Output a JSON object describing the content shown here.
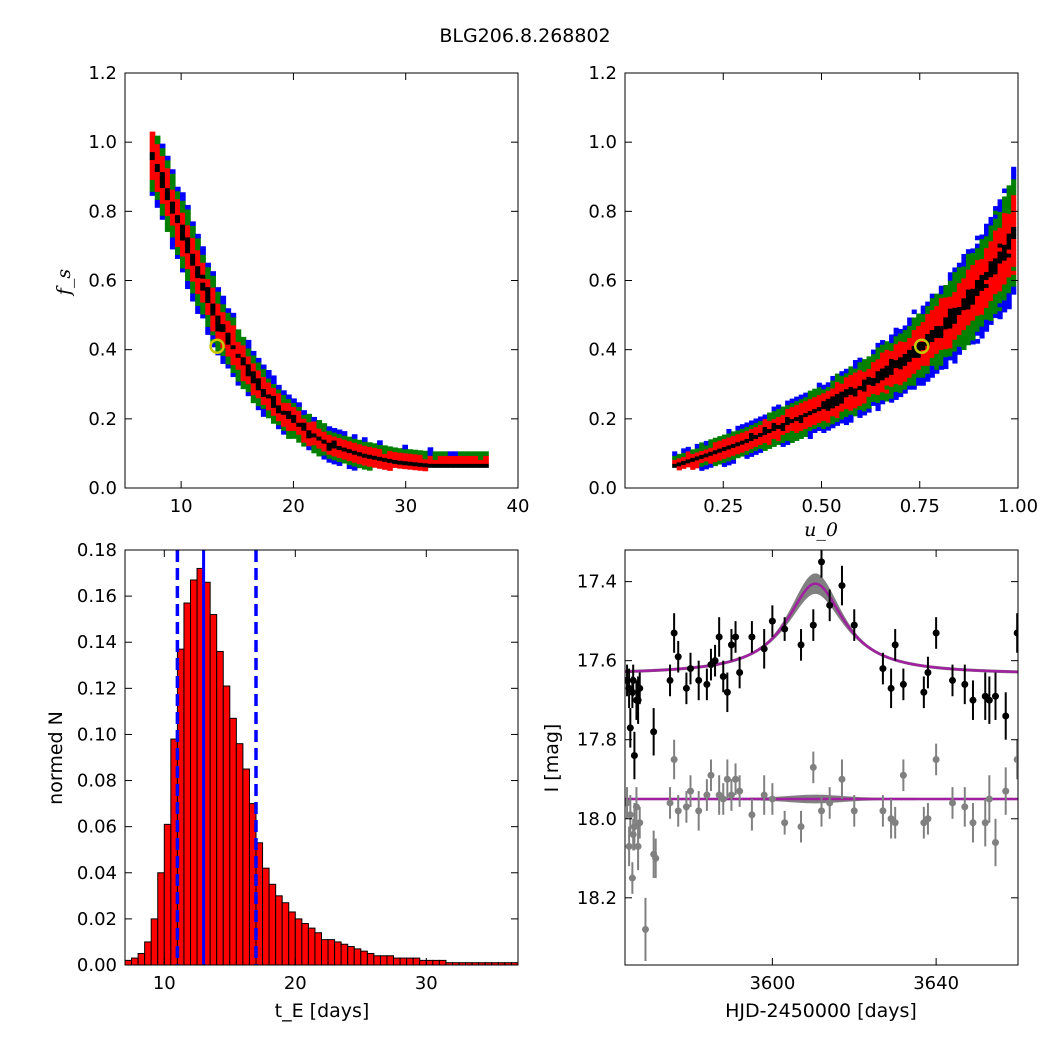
{
  "title": "BLG206.8.268802",
  "colors": {
    "level_outer": "#0000ff",
    "level_mid": "#008000",
    "level_inner": "#ff0000",
    "level_core": "#000000",
    "best_fit_marker": "#c8c800",
    "hist_bar": "#ff0000",
    "quantile_line": "#0000ff",
    "model_line": "#a020a0",
    "model_band": "#808080",
    "residual_points": "#808080",
    "data_points": "#000000"
  },
  "chart_data": [
    {
      "id": "tE_fs",
      "type": "heatmap",
      "xlabel": "",
      "ylabel": "f_s",
      "xlim": [
        5,
        40
      ],
      "ylim": [
        0,
        1.2
      ],
      "xticks": [
        "10",
        "20",
        "30",
        "40"
      ],
      "yticks": [
        "0.0",
        "0.2",
        "0.4",
        "0.6",
        "0.8",
        "1.0",
        "1.2"
      ],
      "levels": [
        "outer",
        "mid",
        "inner",
        "core"
      ],
      "ridge": {
        "x": [
          7.2,
          8.5,
          10.0,
          11.5,
          13.0,
          15.0,
          17.0,
          19.0,
          21.0,
          23.0,
          26.0,
          29.0,
          32.0,
          35.0,
          37.0
        ],
        "y": [
          0.95,
          0.85,
          0.72,
          0.6,
          0.48,
          0.37,
          0.28,
          0.21,
          0.16,
          0.12,
          0.09,
          0.07,
          0.06,
          0.06,
          0.06
        ]
      },
      "best_fit": {
        "x": 13.2,
        "y": 0.41
      }
    },
    {
      "id": "u0_fs",
      "type": "heatmap",
      "xlabel": "u_0",
      "ylabel": "",
      "xlim": [
        0.0,
        1.0
      ],
      "ylim": [
        0,
        1.2
      ],
      "xticks": [
        "0.25",
        "0.50",
        "0.75",
        "1.00"
      ],
      "yticks": [
        "0.0",
        "0.2",
        "0.4",
        "0.6",
        "0.8",
        "1.0",
        "1.2"
      ],
      "levels": [
        "outer",
        "mid",
        "inner",
        "core"
      ],
      "ridge": {
        "x": [
          0.12,
          0.2,
          0.3,
          0.4,
          0.5,
          0.6,
          0.7,
          0.75,
          0.8,
          0.9,
          0.97,
          1.0
        ],
        "y": [
          0.06,
          0.09,
          0.13,
          0.18,
          0.23,
          0.29,
          0.36,
          0.41,
          0.46,
          0.58,
          0.7,
          0.78
        ]
      },
      "best_fit": {
        "x": 0.755,
        "y": 0.41
      }
    },
    {
      "id": "tE_hist",
      "type": "bar",
      "xlabel": "t_E  [days]",
      "ylabel": "normed N",
      "xlim": [
        7,
        37
      ],
      "ylim": [
        0,
        0.18
      ],
      "xticks": [
        "10",
        "20",
        "30"
      ],
      "yticks": [
        "0.00",
        "0.02",
        "0.04",
        "0.06",
        "0.08",
        "0.10",
        "0.12",
        "0.14",
        "0.16",
        "0.18"
      ],
      "bin_width": 0.5,
      "bin_starts": [
        7.0,
        7.5,
        8.0,
        8.5,
        9.0,
        9.5,
        10.0,
        10.5,
        11.0,
        11.5,
        12.0,
        12.5,
        13.0,
        13.5,
        14.0,
        14.5,
        15.0,
        15.5,
        16.0,
        16.5,
        17.0,
        17.5,
        18.0,
        18.5,
        19.0,
        19.5,
        20.0,
        20.5,
        21.0,
        21.5,
        22.0,
        22.5,
        23.0,
        23.5,
        24.0,
        24.5,
        25.0,
        25.5,
        26.0,
        26.5,
        27.0,
        27.5,
        28.0,
        28.5,
        29.0,
        29.5,
        30.0,
        30.5,
        31.0,
        31.5,
        32.0,
        32.5,
        33.0,
        33.5,
        34.0,
        34.5,
        35.0,
        35.5,
        36.0,
        36.5
      ],
      "values": [
        0.002,
        0.003,
        0.005,
        0.01,
        0.02,
        0.04,
        0.061,
        0.098,
        0.137,
        0.157,
        0.167,
        0.172,
        0.166,
        0.152,
        0.136,
        0.121,
        0.107,
        0.096,
        0.085,
        0.07,
        0.053,
        0.042,
        0.035,
        0.03,
        0.027,
        0.023,
        0.02,
        0.018,
        0.016,
        0.014,
        0.011,
        0.011,
        0.01,
        0.009,
        0.008,
        0.007,
        0.006,
        0.005,
        0.004,
        0.004,
        0.004,
        0.003,
        0.003,
        0.003,
        0.003,
        0.002,
        0.002,
        0.002,
        0.002,
        0.001,
        0.001,
        0.001,
        0.001,
        0.001,
        0.001,
        0.001,
        0.001,
        0.001,
        0.001,
        0.001
      ],
      "median": 13.0,
      "quantiles": [
        11.0,
        17.0
      ]
    },
    {
      "id": "lightcurve",
      "type": "scatter",
      "xlabel": "HJD-2450000 [days]",
      "ylabel": "I [mag]",
      "xlim": [
        3564,
        3660
      ],
      "ylim": [
        18.37,
        17.32
      ],
      "xticks": [
        "3600",
        "3640"
      ],
      "yticks": [
        "17.4",
        "17.6",
        "17.8",
        "18.0",
        "18.2"
      ],
      "model": {
        "t0": 3610.5,
        "baseline": 17.635,
        "peak": 17.405,
        "width": 8.5
      },
      "residual_baseline": 17.95,
      "series": [
        {
          "role": "data",
          "x": [
            3564.5,
            3565.0,
            3565.3,
            3565.8,
            3566.0,
            3566.3,
            3566.8,
            3567.2,
            3567.6,
            3571.0,
            3575.0,
            3576.0,
            3577.0,
            3579.0,
            3580.0,
            3582.0,
            3584.0,
            3585.0,
            3586.0,
            3587.0,
            3588.0,
            3589.0,
            3590.0,
            3591.0,
            3592.0,
            3595.0,
            3598.0,
            3600.0,
            3603.0,
            3607.0,
            3610.0,
            3612.0,
            3614.0,
            3617.0,
            3620.0,
            3627.0,
            3629.0,
            3630.0,
            3632.0,
            3637.0,
            3638.0,
            3640.0,
            3644.0,
            3647.0,
            3649.0,
            3652.0,
            3653.0,
            3654.5,
            3657.0,
            3659.8
          ],
          "y": [
            17.65,
            17.67,
            17.77,
            17.68,
            17.65,
            17.84,
            17.7,
            17.7,
            17.67,
            17.78,
            17.65,
            17.53,
            17.59,
            17.67,
            17.62,
            17.65,
            17.66,
            17.61,
            17.6,
            17.54,
            17.64,
            17.68,
            17.56,
            17.54,
            17.63,
            17.54,
            17.57,
            17.5,
            17.52,
            17.56,
            17.51,
            17.35,
            17.46,
            17.41,
            17.51,
            17.62,
            17.67,
            17.56,
            17.66,
            17.68,
            17.63,
            17.53,
            17.65,
            17.66,
            17.7,
            17.69,
            17.7,
            17.69,
            17.74,
            17.53
          ],
          "err": [
            0.04,
            0.05,
            0.05,
            0.04,
            0.04,
            0.06,
            0.05,
            0.06,
            0.04,
            0.06,
            0.04,
            0.05,
            0.04,
            0.04,
            0.04,
            0.05,
            0.04,
            0.04,
            0.04,
            0.05,
            0.04,
            0.05,
            0.04,
            0.04,
            0.04,
            0.04,
            0.05,
            0.04,
            0.03,
            0.04,
            0.04,
            0.04,
            0.04,
            0.05,
            0.04,
            0.04,
            0.05,
            0.04,
            0.04,
            0.04,
            0.04,
            0.04,
            0.04,
            0.05,
            0.05,
            0.06,
            0.06,
            0.06,
            0.06,
            0.05
          ]
        },
        {
          "role": "residuals",
          "x": [
            3564.5,
            3565.0,
            3565.3,
            3565.8,
            3566.0,
            3566.3,
            3566.8,
            3567.2,
            3567.6,
            3569.0,
            3571.0,
            3571.5,
            3575.0,
            3576.0,
            3577.0,
            3579.0,
            3580.0,
            3582.0,
            3584.0,
            3585.0,
            3587.0,
            3588.0,
            3589.0,
            3590.0,
            3591.0,
            3592.0,
            3595.0,
            3598.0,
            3600.0,
            3603.0,
            3607.0,
            3610.0,
            3612.0,
            3614.0,
            3617.0,
            3620.0,
            3627.0,
            3629.0,
            3630.0,
            3632.0,
            3637.0,
            3638.0,
            3640.0,
            3644.0,
            3647.0,
            3649.0,
            3652.0,
            3653.0,
            3654.5,
            3657.0,
            3659.8
          ],
          "y": [
            17.96,
            18.07,
            17.99,
            18.15,
            18.04,
            18.02,
            17.97,
            18.07,
            18.01,
            18.28,
            18.09,
            18.1,
            17.96,
            17.85,
            17.98,
            17.97,
            17.93,
            17.98,
            17.94,
            17.89,
            17.94,
            17.95,
            17.9,
            17.94,
            17.9,
            17.93,
            17.99,
            17.94,
            17.95,
            18.01,
            18.02,
            17.87,
            17.98,
            17.96,
            17.9,
            17.98,
            17.98,
            18.0,
            18.01,
            17.89,
            18.01,
            18.0,
            17.85,
            17.96,
            17.97,
            18.01,
            18.01,
            17.95,
            18.06,
            17.93,
            17.85
          ],
          "err": [
            0.04,
            0.05,
            0.05,
            0.04,
            0.04,
            0.06,
            0.05,
            0.06,
            0.04,
            0.08,
            0.06,
            0.05,
            0.04,
            0.05,
            0.04,
            0.04,
            0.04,
            0.05,
            0.04,
            0.04,
            0.05,
            0.04,
            0.05,
            0.04,
            0.04,
            0.04,
            0.04,
            0.05,
            0.04,
            0.03,
            0.04,
            0.04,
            0.04,
            0.04,
            0.05,
            0.04,
            0.04,
            0.05,
            0.04,
            0.04,
            0.04,
            0.04,
            0.04,
            0.04,
            0.05,
            0.05,
            0.06,
            0.06,
            0.06,
            0.06,
            0.05
          ]
        }
      ]
    }
  ]
}
